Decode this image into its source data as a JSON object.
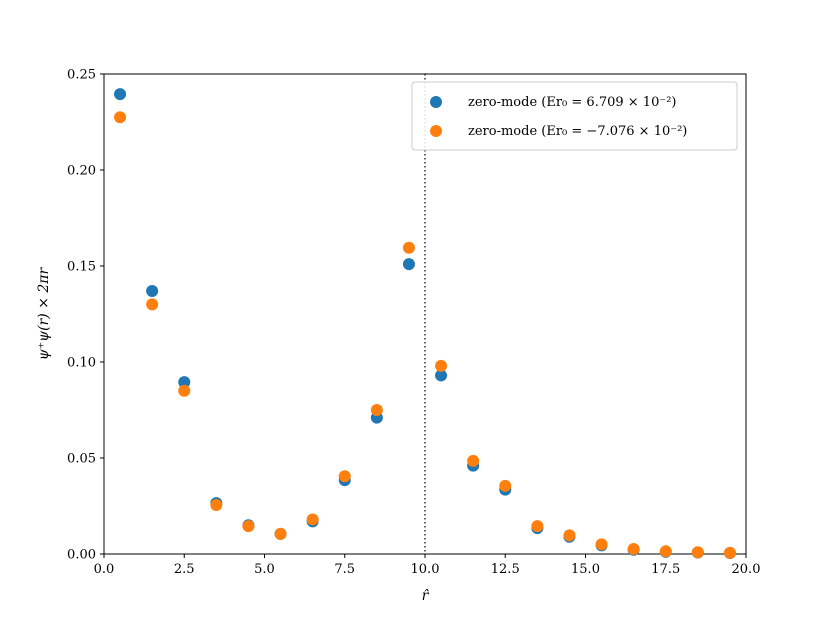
{
  "chart_data": {
    "type": "scatter",
    "title": "",
    "xlabel": "r̂",
    "ylabel": "ψ⁺ψ(r) × 2πr",
    "xlim": [
      0,
      20
    ],
    "ylim": [
      0,
      0.25
    ],
    "xticks": [
      0,
      2.5,
      5,
      7.5,
      10,
      12.5,
      15,
      17.5,
      20
    ],
    "xtick_labels": [
      "0.0",
      "2.5",
      "5.0",
      "7.5",
      "10.0",
      "12.5",
      "15.0",
      "17.5",
      "20.0"
    ],
    "yticks": [
      0,
      0.05,
      0.1,
      0.15,
      0.2,
      0.25
    ],
    "ytick_labels": [
      "0.00",
      "0.05",
      "0.10",
      "0.15",
      "0.20",
      "0.25"
    ],
    "grid": false,
    "legend_position": "top-right",
    "vline": {
      "x": 10,
      "style": "dotted"
    },
    "series": [
      {
        "name": "zero-mode (Er₀ = 6.709 × 10⁻²)",
        "color": "#1f77b4",
        "x": [
          0.5,
          1.5,
          2.5,
          3.5,
          4.5,
          5.5,
          6.5,
          7.5,
          8.5,
          9.5,
          10.5,
          11.5,
          12.5,
          13.5,
          14.5,
          15.5,
          16.5,
          17.5,
          18.5,
          19.5
        ],
        "values": [
          0.2395,
          0.137,
          0.0895,
          0.0265,
          0.015,
          0.0105,
          0.017,
          0.0385,
          0.071,
          0.151,
          0.093,
          0.046,
          0.0335,
          0.0135,
          0.009,
          0.0045,
          0.0022,
          0.0012,
          0.0008,
          0.0005
        ]
      },
      {
        "name": "zero-mode (Er₀ = −7.076 × 10⁻²)",
        "color": "#ff7f0e",
        "x": [
          0.5,
          1.5,
          2.5,
          3.5,
          4.5,
          5.5,
          6.5,
          7.5,
          8.5,
          9.5,
          10.5,
          11.5,
          12.5,
          13.5,
          14.5,
          15.5,
          16.5,
          17.5,
          18.5,
          19.5
        ],
        "values": [
          0.2275,
          0.13,
          0.085,
          0.0255,
          0.0145,
          0.0105,
          0.018,
          0.0405,
          0.075,
          0.1595,
          0.098,
          0.0485,
          0.0355,
          0.0145,
          0.0097,
          0.005,
          0.0026,
          0.0014,
          0.0009,
          0.0006
        ]
      }
    ]
  }
}
